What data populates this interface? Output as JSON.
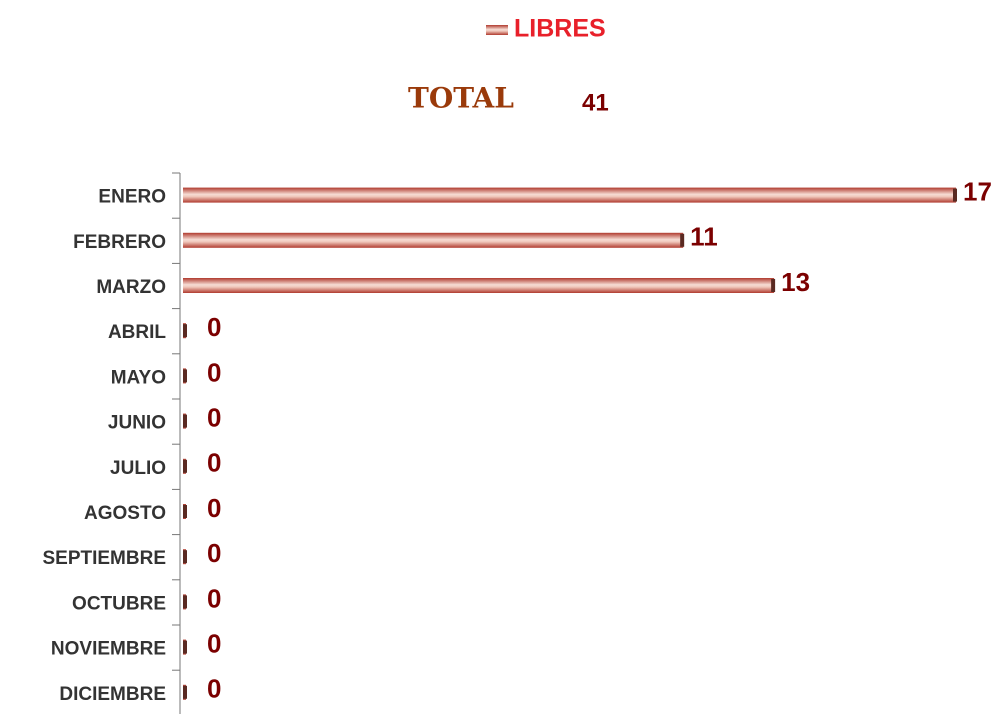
{
  "chart_data": {
    "type": "bar",
    "orientation": "horizontal",
    "total_label": "TOTAL",
    "total": 41,
    "categories": [
      "ENERO",
      "FEBRERO",
      "MARZO",
      "ABRIL",
      "MAYO",
      "JUNIO",
      "JULIO",
      "AGOSTO",
      "SEPTIEMBRE",
      "OCTUBRE",
      "NOVIEMBRE",
      "DICIEMBRE"
    ],
    "series": [
      {
        "name": "LIBRES",
        "color": "#b03a2e",
        "values": [
          17,
          11,
          13,
          0,
          0,
          0,
          0,
          0,
          0,
          0,
          0,
          0
        ]
      }
    ],
    "xlim": [
      0,
      17
    ]
  }
}
